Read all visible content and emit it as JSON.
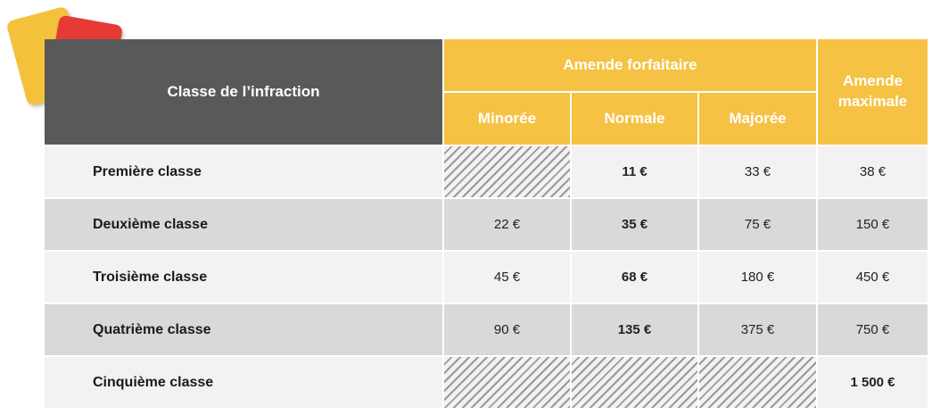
{
  "table": {
    "header": {
      "class_label": "Classe de l’infraction",
      "amende_forfaitaire": "Amende forfaitaire",
      "minoree": "Minorée",
      "normale": "Normale",
      "majoree": "Majorée",
      "amende_maximale_line1": "Amende",
      "amende_maximale_line2": "maximale"
    },
    "rows": [
      {
        "label": "Première classe",
        "minoree": "",
        "normale": "11 €",
        "majoree": "33 €",
        "maximale": "38 €"
      },
      {
        "label": "Deuxième classe",
        "minoree": "22 €",
        "normale": "35 €",
        "majoree": "75 €",
        "maximale": "150 €"
      },
      {
        "label": "Troisième classe",
        "minoree": "45 €",
        "normale": "68 €",
        "majoree": "180 €",
        "maximale": "450 €"
      },
      {
        "label": "Quatrième classe",
        "minoree": "90 €",
        "normale": "135 €",
        "majoree": "375 €",
        "maximale": "750 €"
      },
      {
        "label": "Cinquième classe",
        "minoree": "",
        "normale": "",
        "majoree": "",
        "maximale": "1 500 €"
      }
    ]
  },
  "colors": {
    "header_dark": "#595959",
    "header_yellow": "#f5c243",
    "row_light": "#f2f2f2",
    "row_dark": "#d9d9d9",
    "card_yellow": "#f3c13a",
    "card_red": "#e63b35"
  },
  "icons": [
    "yellow-card-icon",
    "red-card-icon"
  ]
}
